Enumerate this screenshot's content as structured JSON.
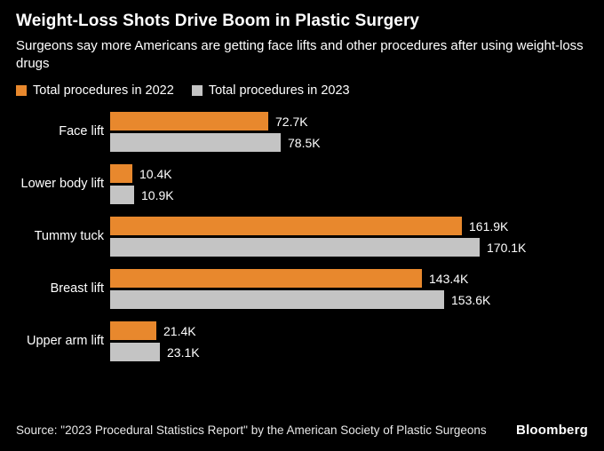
{
  "header": {
    "title": "Weight-Loss Shots Drive Boom in Plastic Surgery",
    "subtitle": "Surgeons say more Americans are getting face lifts and other procedures after using weight-loss drugs"
  },
  "legend": [
    {
      "label": "Total procedures in 2022",
      "color": "#E8882D"
    },
    {
      "label": "Total procedures in 2023",
      "color": "#C4C4C4"
    }
  ],
  "chart_data": {
    "type": "bar",
    "orientation": "horizontal",
    "title": "Weight-Loss Shots Drive Boom in Plastic Surgery",
    "categories": [
      "Face lift",
      "Lower body lift",
      "Tummy tuck",
      "Breast lift",
      "Upper arm lift"
    ],
    "series": [
      {
        "name": "Total procedures in 2022",
        "color": "#E8882D",
        "values": [
          72.7,
          10.4,
          161.9,
          143.4,
          21.4
        ],
        "labels": [
          "72.7K",
          "10.4K",
          "161.9K",
          "143.4K",
          "21.4K"
        ]
      },
      {
        "name": "Total procedures in 2023",
        "color": "#C4C4C4",
        "values": [
          78.5,
          10.9,
          170.1,
          153.6,
          23.1
        ],
        "labels": [
          "78.5K",
          "10.9K",
          "170.1K",
          "153.6K",
          "23.1K"
        ]
      }
    ],
    "unit": "K (thousands of procedures)",
    "xlim": [
      0,
      170.1
    ],
    "grid": false,
    "legend_position": "top",
    "value_labels": "outside-end"
  },
  "footer": {
    "source": "Source: \"2023 Procedural Statistics Report\" by the American Society of Plastic Surgeons",
    "brand": "Bloomberg"
  },
  "colors": {
    "background": "#000000",
    "text": "#FFFFFF",
    "orange": "#E8882D",
    "gray": "#C4C4C4"
  }
}
